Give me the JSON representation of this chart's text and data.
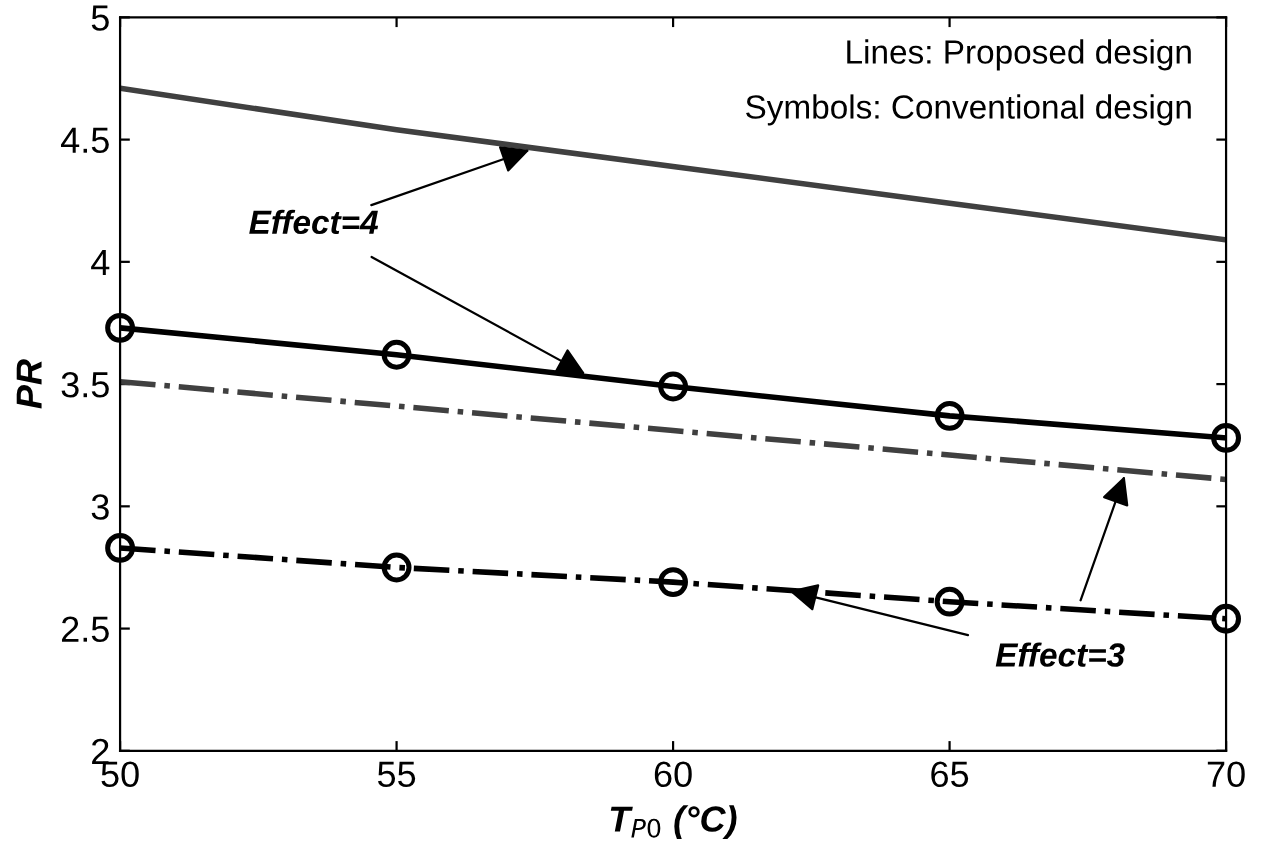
{
  "chart_data": {
    "type": "line",
    "xlabel": "T$_{P0}$ (°C)",
    "ylabel": "PR",
    "x": [
      50,
      55,
      60,
      65,
      70
    ],
    "series": [
      {
        "color": "#404040",
        "values": [
          4.71,
          4.54,
          4.39,
          4.24,
          4.09
        ],
        "line_style": "solid",
        "marker": "none"
      },
      {
        "color": "#000000",
        "values": [
          3.73,
          3.62,
          3.49,
          3.37,
          3.28
        ],
        "line_style": "solid",
        "marker": "circle"
      },
      {
        "color": "#404040",
        "values": [
          3.51,
          3.41,
          3.31,
          3.21,
          3.11
        ],
        "line_style": "dashdot",
        "marker": "none"
      },
      {
        "color": "#000000",
        "values": [
          2.83,
          2.75,
          2.69,
          2.61,
          2.54
        ],
        "line_style": "dashdot",
        "marker": "circle"
      }
    ],
    "annotations": [
      "Lines: Proposed design",
      "Symbols: Conventional design",
      {
        "text": "Effect=4",
        "x": 58.5,
        "y": 3.53
      },
      {
        "text": "Effect=3",
        "x": 62,
        "y": 2.66
      }
    ],
    "xlim": [
      50,
      70
    ],
    "ylim": [
      2,
      5
    ],
    "xticks": [
      50,
      55,
      60,
      65,
      70
    ],
    "yticks": [
      2,
      2.5,
      3,
      3.5,
      4,
      4.5,
      5
    ],
    "grid": false,
    "legend": false
  }
}
